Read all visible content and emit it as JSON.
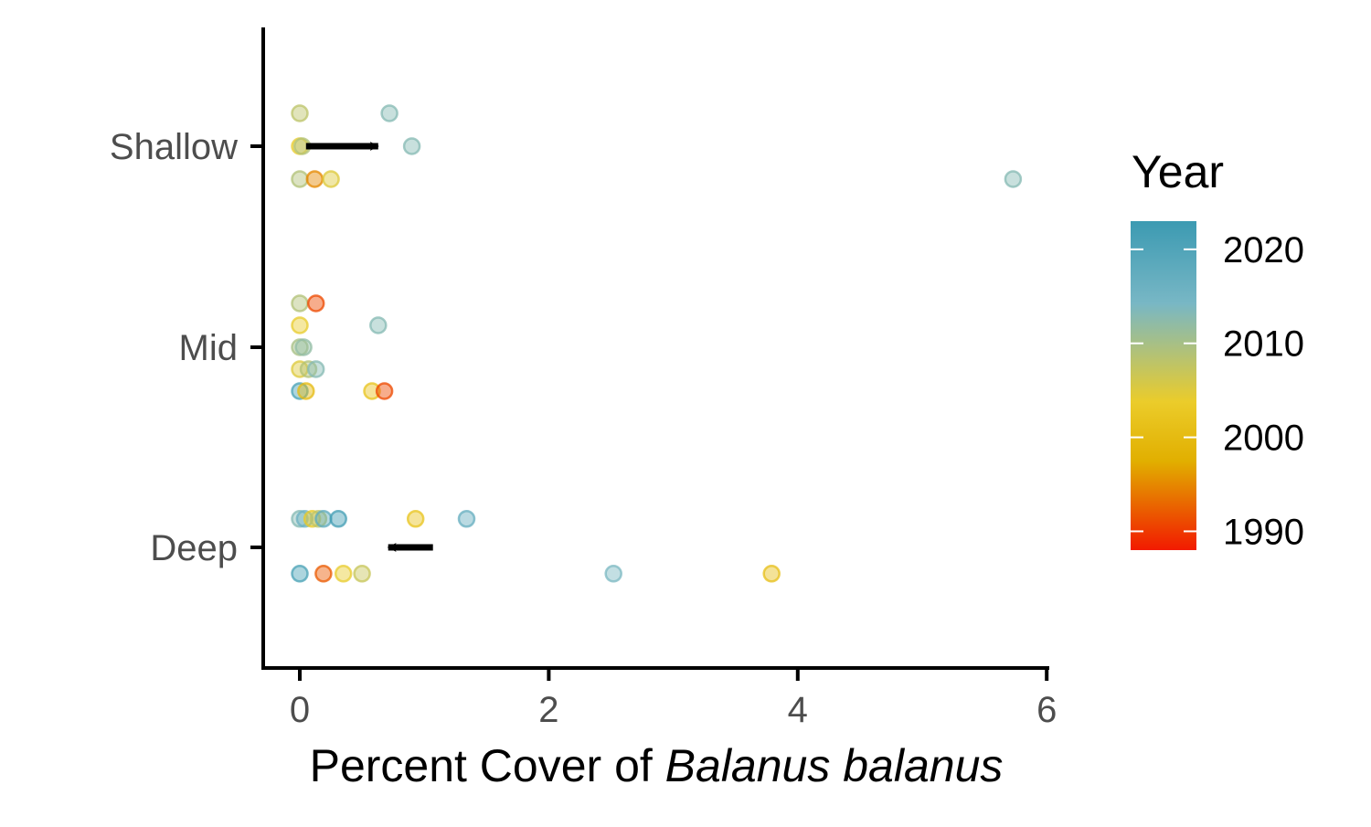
{
  "chart_data": {
    "type": "scatter",
    "xlabel_prefix": "Percent Cover of ",
    "xlabel_italic": "Balanus balanus",
    "ylabel": "",
    "x_ticks": [
      "0",
      "2",
      "4",
      "6"
    ],
    "xlim": [
      -0.3,
      6
    ],
    "y_categories": [
      "Shallow",
      "Mid",
      "Deep"
    ],
    "grid": false,
    "legend": {
      "title": "Year",
      "position": "right",
      "type": "colorbar",
      "range": [
        1988,
        2023
      ],
      "ticks": [
        "2020",
        "2010",
        "2000",
        "1990"
      ],
      "colors": [
        "#3C9AB2",
        "#78B7C5",
        "#EBCC2A",
        "#E1AF00",
        "#F21A00"
      ]
    },
    "points": [
      {
        "category": "Shallow",
        "offset": 0.15,
        "x": 0.0,
        "year": 2008
      },
      {
        "category": "Shallow",
        "offset": 0.15,
        "x": 0.72,
        "year": 2013
      },
      {
        "category": "Shallow",
        "offset": 0.0,
        "x": 0.0,
        "year": 2004
      },
      {
        "category": "Shallow",
        "offset": 0.0,
        "x": 0.02,
        "year": 2009
      },
      {
        "category": "Shallow",
        "offset": 0.0,
        "x": 0.9,
        "year": 2013
      },
      {
        "category": "Shallow",
        "offset": -0.15,
        "x": 0.0,
        "year": 2009
      },
      {
        "category": "Shallow",
        "offset": -0.15,
        "x": 0.12,
        "year": 1995
      },
      {
        "category": "Shallow",
        "offset": -0.15,
        "x": 0.25,
        "year": 2005
      },
      {
        "category": "Shallow",
        "offset": -0.15,
        "x": 5.73,
        "year": 2013
      },
      {
        "category": "Mid",
        "offset": 0.2,
        "x": 0.0,
        "year": 2009
      },
      {
        "category": "Mid",
        "offset": 0.2,
        "x": 0.13,
        "year": 1991
      },
      {
        "category": "Mid",
        "offset": 0.1,
        "x": 0.0,
        "year": 2004
      },
      {
        "category": "Mid",
        "offset": 0.1,
        "x": 0.63,
        "year": 2013
      },
      {
        "category": "Mid",
        "offset": 0.0,
        "x": 0.0,
        "year": 2010
      },
      {
        "category": "Mid",
        "offset": 0.0,
        "x": 0.03,
        "year": 2012
      },
      {
        "category": "Mid",
        "offset": -0.1,
        "x": 0.0,
        "year": 2005
      },
      {
        "category": "Mid",
        "offset": -0.1,
        "x": 0.07,
        "year": 2009
      },
      {
        "category": "Mid",
        "offset": -0.1,
        "x": 0.13,
        "year": 2013
      },
      {
        "category": "Mid",
        "offset": -0.2,
        "x": 0.0,
        "year": 2021
      },
      {
        "category": "Mid",
        "offset": -0.2,
        "x": 0.05,
        "year": 2000
      },
      {
        "category": "Mid",
        "offset": -0.2,
        "x": 0.58,
        "year": 2002
      },
      {
        "category": "Mid",
        "offset": -0.2,
        "x": 0.68,
        "year": 1991
      },
      {
        "category": "Deep",
        "offset": 0.13,
        "x": 0.0,
        "year": 2013
      },
      {
        "category": "Deep",
        "offset": 0.13,
        "x": 0.04,
        "year": 2016
      },
      {
        "category": "Deep",
        "offset": 0.13,
        "x": 0.1,
        "year": 2003
      },
      {
        "category": "Deep",
        "offset": 0.13,
        "x": 0.15,
        "year": 2008
      },
      {
        "category": "Deep",
        "offset": 0.13,
        "x": 0.19,
        "year": 2018
      },
      {
        "category": "Deep",
        "offset": 0.13,
        "x": 0.31,
        "year": 2022
      },
      {
        "category": "Deep",
        "offset": 0.13,
        "x": 0.93,
        "year": 2002
      },
      {
        "category": "Deep",
        "offset": 0.13,
        "x": 1.34,
        "year": 2017
      },
      {
        "category": "Deep",
        "offset": -0.12,
        "x": 0.0,
        "year": 2021
      },
      {
        "category": "Deep",
        "offset": -0.12,
        "x": 0.19,
        "year": 1992
      },
      {
        "category": "Deep",
        "offset": -0.12,
        "x": 0.35,
        "year": 2004
      },
      {
        "category": "Deep",
        "offset": -0.12,
        "x": 0.5,
        "year": 2007
      },
      {
        "category": "Deep",
        "offset": -0.12,
        "x": 2.52,
        "year": 2014
      },
      {
        "category": "Deep",
        "offset": -0.12,
        "x": 3.79,
        "year": 2001
      }
    ],
    "annotations": [
      {
        "type": "arrow",
        "direction": "right",
        "category": "Shallow",
        "x_from": 0.05,
        "x_to": 0.63
      },
      {
        "type": "arrow",
        "direction": "left",
        "category": "Deep",
        "x_from": 1.07,
        "x_to": 0.71
      }
    ]
  }
}
